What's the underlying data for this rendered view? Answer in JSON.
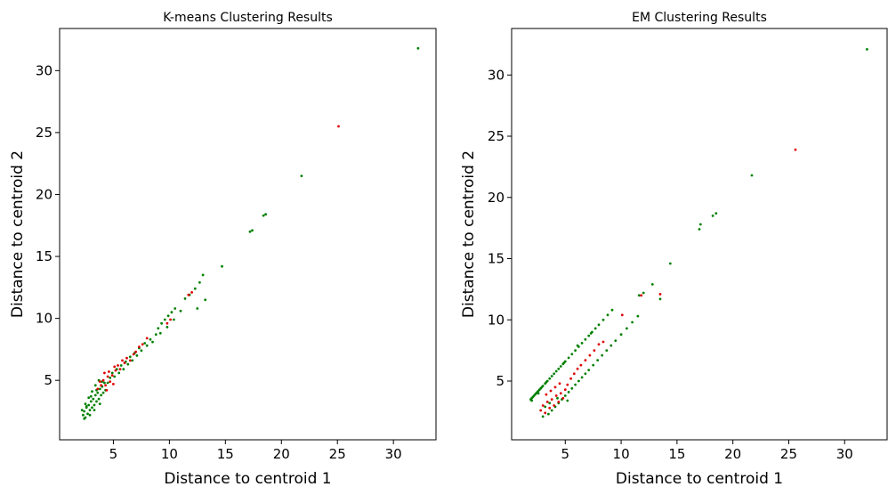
{
  "colors": {
    "cluster_a": "#008000",
    "cluster_b": "#e00000"
  },
  "chart_data": [
    {
      "type": "scatter",
      "title": "K-means Clustering Results",
      "xlabel": "Distance to centroid 1",
      "ylabel": "Distance to centroid 2",
      "xlim": [
        0.2,
        33.8
      ],
      "ylim": [
        0.2,
        33.4
      ],
      "xticks": [
        5,
        10,
        15,
        20,
        25,
        30
      ],
      "yticks": [
        5,
        10,
        15,
        20,
        25,
        30
      ],
      "grid": false,
      "series": [
        {
          "color": "#008000",
          "points": [
            [
              2.3,
              2.2
            ],
            [
              2.4,
              2.5
            ],
            [
              2.5,
              2.0
            ],
            [
              2.6,
              2.8
            ],
            [
              2.7,
              2.3
            ],
            [
              2.8,
              3.0
            ],
            [
              2.9,
              2.6
            ],
            [
              3.0,
              3.3
            ],
            [
              3.1,
              2.8
            ],
            [
              3.2,
              3.5
            ],
            [
              3.3,
              3.0
            ],
            [
              3.4,
              3.8
            ],
            [
              3.5,
              3.3
            ],
            [
              3.6,
              4.0
            ],
            [
              3.7,
              3.5
            ],
            [
              3.8,
              4.3
            ],
            [
              3.9,
              3.8
            ],
            [
              4.0,
              4.5
            ],
            [
              4.1,
              4.0
            ],
            [
              4.2,
              4.8
            ],
            [
              2.2,
              2.6
            ],
            [
              2.5,
              3.1
            ],
            [
              2.8,
              3.6
            ],
            [
              3.1,
              4.1
            ],
            [
              3.4,
              4.6
            ],
            [
              3.7,
              5.0
            ],
            [
              2.4,
              1.9
            ],
            [
              2.9,
              2.2
            ],
            [
              3.3,
              2.6
            ],
            [
              3.8,
              3.1
            ],
            [
              4.3,
              4.2
            ],
            [
              4.5,
              4.8
            ],
            [
              4.7,
              5.2
            ],
            [
              4.9,
              5.6
            ],
            [
              5.1,
              5.3
            ],
            [
              5.3,
              5.9
            ],
            [
              5.5,
              5.6
            ],
            [
              5.7,
              6.2
            ],
            [
              5.9,
              5.9
            ],
            [
              6.1,
              6.5
            ],
            [
              6.3,
              6.3
            ],
            [
              6.5,
              6.9
            ],
            [
              6.7,
              6.6
            ],
            [
              6.9,
              7.2
            ],
            [
              7.1,
              7.0
            ],
            [
              7.3,
              7.6
            ],
            [
              7.5,
              7.4
            ],
            [
              7.8,
              8.0
            ],
            [
              8.0,
              7.8
            ],
            [
              8.3,
              8.3
            ],
            [
              8.5,
              8.1
            ],
            [
              8.8,
              8.7
            ],
            [
              9.0,
              9.2
            ],
            [
              9.3,
              9.6
            ],
            [
              9.6,
              9.9
            ],
            [
              9.9,
              10.2
            ],
            [
              10.2,
              10.5
            ],
            [
              10.5,
              10.8
            ],
            [
              9.2,
              8.8
            ],
            [
              9.8,
              9.3
            ],
            [
              10.4,
              9.9
            ],
            [
              11.0,
              10.6
            ],
            [
              11.4,
              11.6
            ],
            [
              11.8,
              11.9
            ],
            [
              12.3,
              12.4
            ],
            [
              12.7,
              12.9
            ],
            [
              13.0,
              13.5
            ],
            [
              13.2,
              11.5
            ],
            [
              12.5,
              10.8
            ],
            [
              14.7,
              14.2
            ],
            [
              17.2,
              17.0
            ],
            [
              17.4,
              17.1
            ],
            [
              18.4,
              18.3
            ],
            [
              18.6,
              18.4
            ],
            [
              21.8,
              21.5
            ],
            [
              32.2,
              31.8
            ],
            [
              2.6,
              2.9
            ],
            [
              3.0,
              3.7
            ],
            [
              3.5,
              4.2
            ],
            [
              4.0,
              4.9
            ]
          ]
        },
        {
          "color": "#e00000",
          "points": [
            [
              3.9,
              4.6
            ],
            [
              4.1,
              5.0
            ],
            [
              4.3,
              4.6
            ],
            [
              4.5,
              5.3
            ],
            [
              4.2,
              5.6
            ],
            [
              4.7,
              4.9
            ],
            [
              4.9,
              5.4
            ],
            [
              5.0,
              4.7
            ],
            [
              4.4,
              4.2
            ],
            [
              3.8,
              4.9
            ],
            [
              5.2,
              5.8
            ],
            [
              5.4,
              6.2
            ],
            [
              5.6,
              5.9
            ],
            [
              5.8,
              6.6
            ],
            [
              6.0,
              6.4
            ],
            [
              6.2,
              6.8
            ],
            [
              6.5,
              6.6
            ],
            [
              6.8,
              7.1
            ],
            [
              7.0,
              7.3
            ],
            [
              7.3,
              7.7
            ],
            [
              7.6,
              7.9
            ],
            [
              8.0,
              8.4
            ],
            [
              4.6,
              5.7
            ],
            [
              5.1,
              6.1
            ],
            [
              3.6,
              4.3
            ],
            [
              9.8,
              9.6
            ],
            [
              10.1,
              9.9
            ],
            [
              11.7,
              11.9
            ],
            [
              12.0,
              12.1
            ],
            [
              25.1,
              25.5
            ]
          ]
        }
      ]
    },
    {
      "type": "scatter",
      "title": "EM Clustering Results",
      "xlabel": "Distance to centroid 1",
      "ylabel": "Distance to centroid 2",
      "xlim": [
        0.2,
        33.8
      ],
      "ylim": [
        0.2,
        33.8
      ],
      "xticks": [
        5,
        10,
        15,
        20,
        25,
        30
      ],
      "yticks": [
        5,
        10,
        15,
        20,
        25,
        30
      ],
      "grid": false,
      "series": [
        {
          "color": "#008000",
          "points": [
            [
              1.9,
              3.5
            ],
            [
              2.0,
              3.6
            ],
            [
              2.1,
              3.7
            ],
            [
              2.2,
              3.8
            ],
            [
              2.3,
              3.9
            ],
            [
              2.4,
              4.0
            ],
            [
              2.5,
              4.1
            ],
            [
              2.6,
              4.2
            ],
            [
              2.7,
              4.3
            ],
            [
              2.8,
              4.4
            ],
            [
              2.9,
              4.5
            ],
            [
              3.0,
              4.6
            ],
            [
              3.2,
              4.8
            ],
            [
              3.4,
              5.0
            ],
            [
              3.6,
              5.2
            ],
            [
              3.8,
              5.4
            ],
            [
              4.0,
              5.6
            ],
            [
              4.2,
              5.8
            ],
            [
              4.4,
              6.0
            ],
            [
              4.6,
              6.2
            ],
            [
              4.8,
              6.4
            ],
            [
              5.0,
              6.6
            ],
            [
              5.3,
              6.9
            ],
            [
              5.6,
              7.2
            ],
            [
              5.9,
              7.5
            ],
            [
              6.2,
              7.8
            ],
            [
              6.5,
              8.1
            ],
            [
              6.8,
              8.4
            ],
            [
              7.1,
              8.7
            ],
            [
              7.4,
              9.0
            ],
            [
              7.7,
              9.3
            ],
            [
              8.0,
              9.6
            ],
            [
              8.4,
              10.0
            ],
            [
              8.8,
              10.4
            ],
            [
              9.2,
              10.8
            ],
            [
              3.5,
              2.3
            ],
            [
              3.8,
              2.6
            ],
            [
              4.1,
              2.9
            ],
            [
              4.4,
              3.2
            ],
            [
              4.7,
              3.5
            ],
            [
              5.0,
              3.8
            ],
            [
              5.3,
              4.1
            ],
            [
              5.6,
              4.4
            ],
            [
              5.9,
              4.7
            ],
            [
              6.2,
              5.0
            ],
            [
              6.5,
              5.3
            ],
            [
              6.8,
              5.6
            ],
            [
              7.1,
              5.9
            ],
            [
              7.5,
              6.3
            ],
            [
              7.9,
              6.7
            ],
            [
              8.3,
              7.1
            ],
            [
              8.7,
              7.5
            ],
            [
              9.1,
              7.9
            ],
            [
              9.5,
              8.3
            ],
            [
              10.0,
              8.8
            ],
            [
              10.5,
              9.3
            ],
            [
              11.0,
              9.8
            ],
            [
              11.5,
              10.3
            ],
            [
              3.0,
              2.1
            ],
            [
              3.2,
              2.9
            ],
            [
              3.6,
              3.2
            ],
            [
              4.3,
              3.6
            ],
            [
              5.2,
              3.4
            ],
            [
              11.6,
              12.0
            ],
            [
              12.0,
              12.2
            ],
            [
              12.8,
              12.9
            ],
            [
              13.5,
              11.7
            ],
            [
              14.4,
              14.6
            ],
            [
              17.0,
              17.4
            ],
            [
              17.1,
              17.8
            ],
            [
              18.2,
              18.5
            ],
            [
              18.5,
              18.7
            ],
            [
              21.7,
              21.8
            ],
            [
              32.0,
              32.1
            ],
            [
              2.0,
              3.4
            ],
            [
              2.6,
              4.0
            ],
            [
              3.3,
              4.9
            ],
            [
              4.9,
              6.5
            ],
            [
              6.1,
              7.9
            ],
            [
              7.3,
              8.9
            ]
          ]
        },
        {
          "color": "#e00000",
          "points": [
            [
              2.8,
              2.6
            ],
            [
              3.0,
              3.0
            ],
            [
              3.2,
              2.4
            ],
            [
              3.4,
              3.3
            ],
            [
              3.6,
              2.8
            ],
            [
              3.8,
              3.5
            ],
            [
              4.0,
              3.0
            ],
            [
              4.2,
              3.8
            ],
            [
              4.4,
              3.3
            ],
            [
              4.6,
              4.0
            ],
            [
              4.8,
              3.6
            ],
            [
              5.0,
              4.3
            ],
            [
              3.3,
              3.9
            ],
            [
              3.7,
              4.2
            ],
            [
              4.1,
              4.5
            ],
            [
              4.5,
              4.8
            ],
            [
              5.2,
              4.7
            ],
            [
              5.5,
              5.2
            ],
            [
              5.8,
              5.6
            ],
            [
              6.1,
              6.0
            ],
            [
              6.4,
              6.3
            ],
            [
              6.8,
              6.7
            ],
            [
              7.2,
              7.1
            ],
            [
              7.6,
              7.5
            ],
            [
              8.0,
              8.0
            ],
            [
              8.4,
              8.2
            ],
            [
              10.1,
              10.4
            ],
            [
              11.8,
              12.0
            ],
            [
              13.5,
              12.1
            ],
            [
              25.6,
              23.9
            ]
          ]
        }
      ]
    }
  ]
}
